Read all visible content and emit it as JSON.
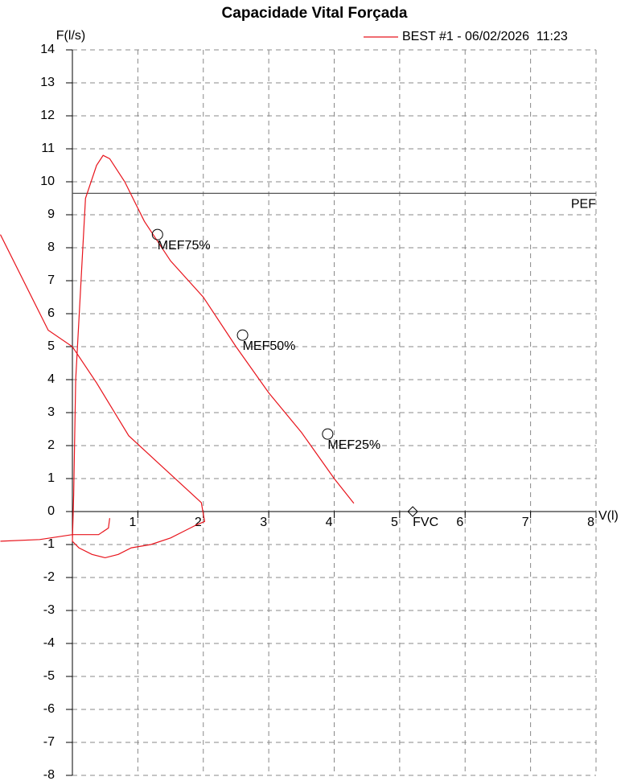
{
  "chart_data": {
    "type": "line",
    "title": "Capacidade Vital Forçada",
    "x_label": "V(l)",
    "y_label": "F(l/s)",
    "xlim": [
      0,
      8
    ],
    "ylim": [
      -8,
      14
    ],
    "xticks": [
      1,
      2,
      3,
      4,
      5,
      6,
      7,
      8
    ],
    "yticks": [
      -8,
      -7,
      -6,
      -5,
      -4,
      -3,
      -2,
      -1,
      0,
      1,
      2,
      3,
      4,
      5,
      6,
      7,
      8,
      9,
      10,
      11,
      12,
      13,
      14
    ],
    "grid": true,
    "legend": "top-right",
    "x": [
      -1.1,
      -0.37,
      0,
      0.37,
      0.86,
      1.35,
      1.97,
      2.02,
      1.9,
      1.7,
      1.5,
      1.2,
      0.9,
      0.7,
      0.5,
      0.3,
      0.1,
      0,
      0.02,
      0.05,
      0.2,
      0.37,
      0.47,
      0.57,
      0.8,
      1.1,
      1.5,
      2.0,
      2.5,
      3.0,
      3.5,
      4.0,
      4.3,
      null,
      -1.1,
      -0.5,
      0,
      0.4,
      0.55,
      0.57
    ],
    "series": [
      {
        "name": "BEST #1 - 06/02/2026  11:23",
        "color": "#e8141c",
        "values": [
          8.4,
          5.5,
          5.0,
          3.9,
          2.3,
          1.4,
          0.27,
          -0.3,
          -0.4,
          -0.6,
          -0.8,
          -1.0,
          -1.1,
          -1.3,
          -1.4,
          -1.3,
          -1.1,
          -0.9,
          0.5,
          4.0,
          9.5,
          10.5,
          10.8,
          10.7,
          10.0,
          8.8,
          7.6,
          6.5,
          5.0,
          3.6,
          2.4,
          1.0,
          0.25,
          null,
          -0.9,
          -0.85,
          -0.7,
          -0.7,
          -0.5,
          -0.2
        ]
      }
    ],
    "reference_lines": [
      {
        "label": "PEF",
        "value": 9.65
      }
    ],
    "markers": [
      {
        "label": "MEF75%",
        "x": 1.3,
        "y": 8.4,
        "shape": "circle"
      },
      {
        "label": "MEF50%",
        "x": 2.6,
        "y": 5.35,
        "shape": "circle"
      },
      {
        "label": "MEF25%",
        "x": 3.9,
        "y": 2.35,
        "shape": "circle"
      },
      {
        "label": "FVC",
        "x": 5.2,
        "y": 0,
        "shape": "diamond"
      }
    ]
  }
}
